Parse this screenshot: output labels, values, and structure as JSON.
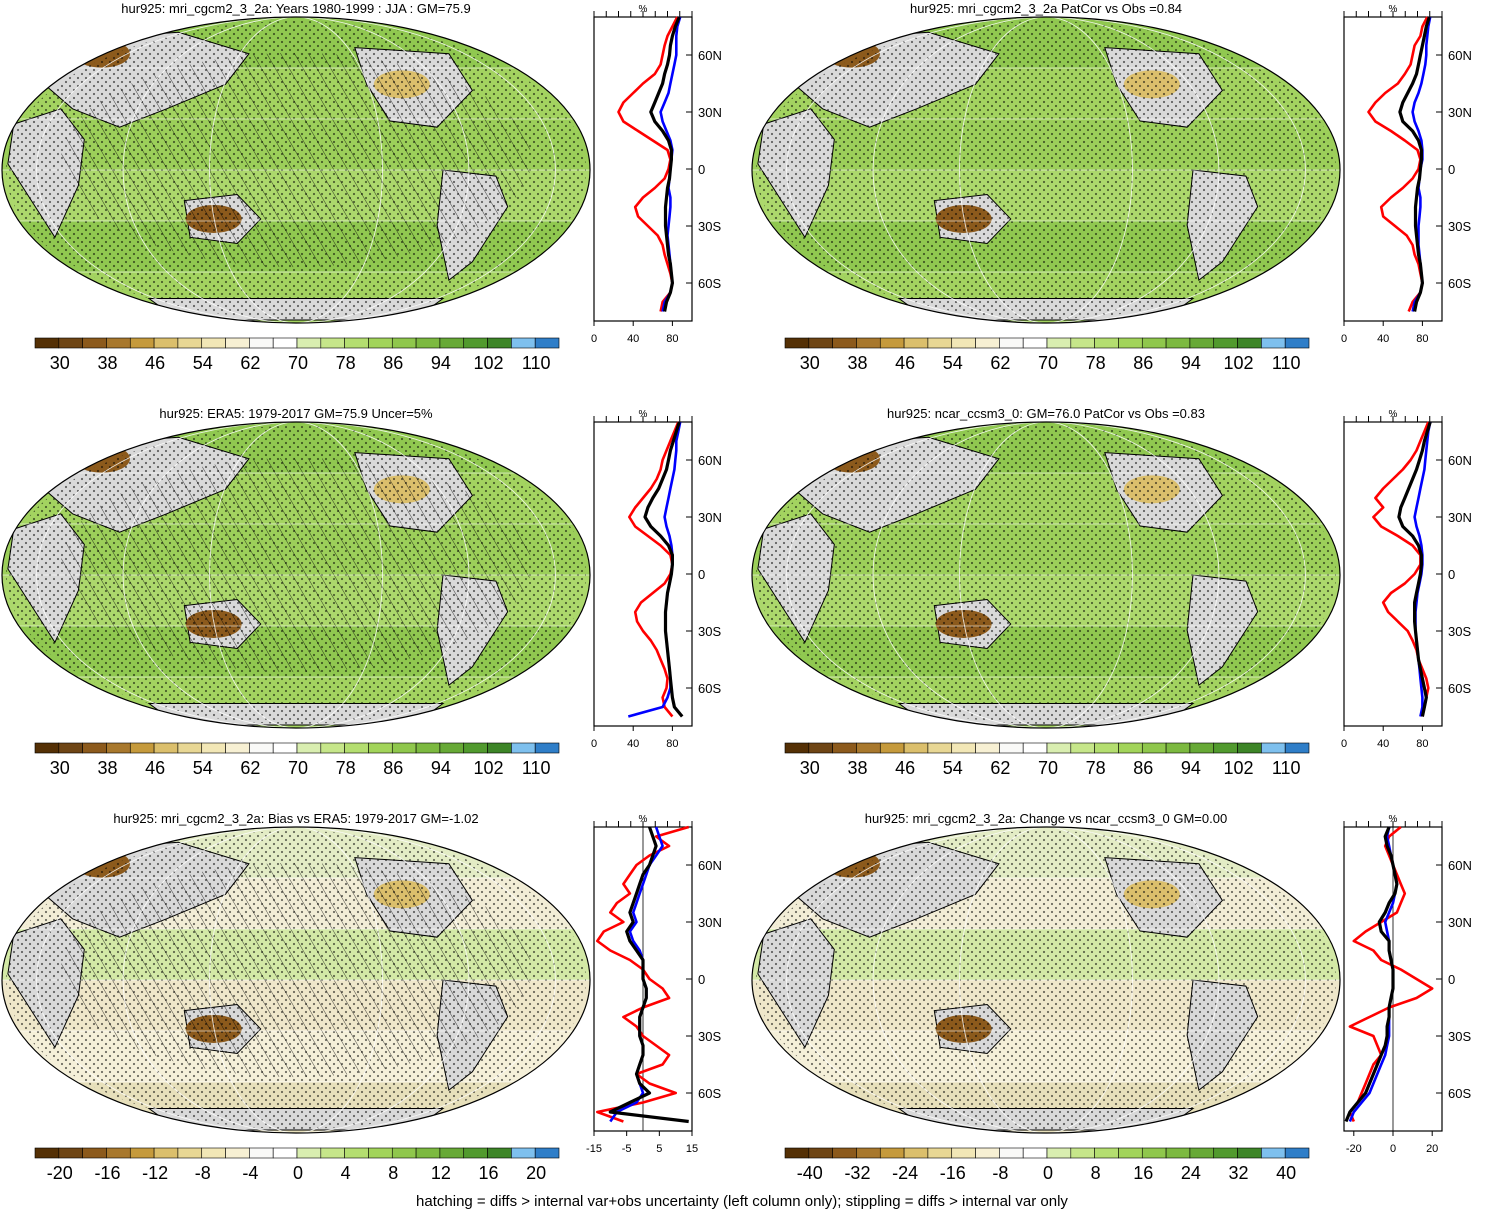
{
  "footer": "hatching = diffs > internal var+obs uncertainty (left column only); stippling = diffs > internal var only",
  "colors": {
    "red": "#ff0000",
    "blue": "#0000ff",
    "black": "#000000",
    "land_gray": "#d9d9d9",
    "abs_palette": [
      "#543005",
      "#6e4514",
      "#8c5a1c",
      "#a8782d",
      "#c59a3c",
      "#dbbf6c",
      "#e8d794",
      "#f2e7b6",
      "#f7f0d3",
      "#f9f9f7",
      "#ffffff",
      "#d9eeb0",
      "#c6e68a",
      "#b4de70",
      "#a2d45a",
      "#8fc74c",
      "#7cb940",
      "#67a936",
      "#519a2e",
      "#3d8527",
      "#7ec0ee",
      "#2f7ec8"
    ],
    "diff_palette": [
      "#543005",
      "#6e4514",
      "#8c5a1c",
      "#a8782d",
      "#c59a3c",
      "#dbbf6c",
      "#e8d794",
      "#f2e7b6",
      "#f7f0d3",
      "#f9f9f7",
      "#ffffff",
      "#d9eeb0",
      "#c6e68a",
      "#b4de70",
      "#a2d45a",
      "#8fc74c",
      "#7cb940",
      "#67a936",
      "#519a2e",
      "#3d8527",
      "#7ec0ee",
      "#2f7ec8"
    ]
  },
  "panels": [
    {
      "title": "hur925: mri_cgcm2_3_2a: Years 1980-1999 : JJA : GM=75.9",
      "colorbar_labels": [
        "30",
        "38",
        "46",
        "54",
        "62",
        "70",
        "78",
        "86",
        "94",
        "102",
        "110"
      ],
      "palette": "abs",
      "hatch": true
    },
    {
      "title": "hur925: mri_cgcm2_3_2a PatCor vs Obs =0.84",
      "colorbar_labels": [
        "30",
        "38",
        "46",
        "54",
        "62",
        "70",
        "78",
        "86",
        "94",
        "102",
        "110"
      ],
      "palette": "abs",
      "hatch": false
    },
    {
      "title": "hur925: ERA5: 1979-2017 GM=75.9 Uncer=5%",
      "colorbar_labels": [
        "30",
        "38",
        "46",
        "54",
        "62",
        "70",
        "78",
        "86",
        "94",
        "102",
        "110"
      ],
      "palette": "abs",
      "hatch": true
    },
    {
      "title": "hur925: ncar_ccsm3_0: GM=76.0 PatCor vs Obs =0.83",
      "colorbar_labels": [
        "30",
        "38",
        "46",
        "54",
        "62",
        "70",
        "78",
        "86",
        "94",
        "102",
        "110"
      ],
      "palette": "abs",
      "hatch": false
    },
    {
      "title": "hur925: mri_cgcm2_3_2a: Bias vs ERA5: 1979-2017 GM=-1.02",
      "colorbar_labels": [
        "-20",
        "-16",
        "-12",
        "-8",
        "-4",
        "0",
        "4",
        "8",
        "12",
        "16",
        "20"
      ],
      "palette": "diff",
      "hatch": true
    },
    {
      "title": "hur925: mri_cgcm2_3_2a: Change vs ncar_ccsm3_0 GM=0.00",
      "colorbar_labels": [
        "-40",
        "-32",
        "-24",
        "-16",
        "-8",
        "0",
        "8",
        "16",
        "24",
        "32",
        "40"
      ],
      "palette": "diff",
      "hatch": false
    }
  ],
  "chart_data": [
    {
      "type": "line",
      "panel": "row1-left-profile",
      "ylabel_top": "%",
      "lat_ticks": [
        "60N",
        "30N",
        "0",
        "30S",
        "60S"
      ],
      "x_ticks": [
        "0",
        "40",
        "80"
      ],
      "xlim": [
        0,
        100
      ],
      "ylim": [
        -80,
        80
      ],
      "lat": [
        80,
        75,
        70,
        65,
        60,
        55,
        50,
        45,
        40,
        35,
        30,
        25,
        20,
        15,
        10,
        5,
        0,
        -5,
        -10,
        -15,
        -20,
        -25,
        -30,
        -35,
        -40,
        -45,
        -50,
        -55,
        -60,
        -65,
        -70,
        -75
      ],
      "series": [
        {
          "color": "red",
          "values": [
            85,
            80,
            75,
            72,
            70,
            68,
            62,
            50,
            40,
            30,
            25,
            30,
            45,
            60,
            75,
            78,
            76,
            72,
            62,
            50,
            42,
            45,
            55,
            65,
            70,
            72,
            75,
            78,
            80,
            78,
            70,
            68
          ]
        },
        {
          "color": "blue",
          "values": [
            88,
            85,
            84,
            84,
            84,
            82,
            80,
            78,
            76,
            72,
            68,
            70,
            74,
            78,
            80,
            79,
            78,
            77,
            76,
            78,
            78,
            77,
            76,
            75,
            76,
            77,
            78,
            79,
            80,
            78,
            72,
            70
          ]
        },
        {
          "color": "black",
          "values": [
            87,
            83,
            80,
            78,
            77,
            75,
            72,
            70,
            66,
            62,
            58,
            62,
            70,
            76,
            79,
            79,
            78,
            77,
            75,
            74,
            73,
            73,
            73,
            74,
            75,
            76,
            78,
            79,
            80,
            78,
            74,
            72
          ]
        }
      ]
    },
    {
      "type": "line",
      "panel": "row1-right-profile",
      "ylabel_top": "%",
      "lat_ticks": [
        "60N",
        "30N",
        "0",
        "30S",
        "60S"
      ],
      "x_ticks": [
        "0",
        "40",
        "80"
      ],
      "xlim": [
        0,
        100
      ],
      "ylim": [
        -80,
        80
      ],
      "lat": [
        80,
        75,
        70,
        65,
        60,
        55,
        50,
        45,
        40,
        35,
        30,
        25,
        20,
        15,
        10,
        5,
        0,
        -5,
        -10,
        -15,
        -20,
        -25,
        -30,
        -35,
        -40,
        -45,
        -50,
        -55,
        -60,
        -65,
        -70,
        -75
      ],
      "series": [
        {
          "color": "red",
          "values": [
            85,
            80,
            78,
            72,
            70,
            68,
            62,
            55,
            42,
            32,
            25,
            32,
            48,
            62,
            75,
            78,
            76,
            70,
            60,
            48,
            38,
            40,
            52,
            64,
            70,
            72,
            76,
            78,
            80,
            78,
            70,
            66
          ]
        },
        {
          "color": "blue",
          "values": [
            88,
            86,
            85,
            84,
            84,
            83,
            81,
            79,
            76,
            72,
            70,
            72,
            76,
            79,
            80,
            80,
            78,
            77,
            76,
            78,
            78,
            77,
            76,
            76,
            76,
            77,
            78,
            79,
            80,
            78,
            72,
            70
          ]
        },
        {
          "color": "black",
          "values": [
            87,
            84,
            82,
            80,
            78,
            76,
            74,
            70,
            65,
            60,
            57,
            60,
            70,
            76,
            79,
            79,
            78,
            77,
            75,
            74,
            73,
            73,
            73,
            74,
            75,
            76,
            78,
            79,
            80,
            78,
            74,
            72
          ]
        }
      ]
    },
    {
      "type": "line",
      "panel": "row2-left-profile",
      "ylabel_top": "%",
      "lat_ticks": [
        "60N",
        "30N",
        "0",
        "30S",
        "60S"
      ],
      "x_ticks": [
        "0",
        "40",
        "80"
      ],
      "xlim": [
        0,
        100
      ],
      "ylim": [
        -80,
        80
      ],
      "lat": [
        80,
        75,
        70,
        65,
        60,
        55,
        50,
        45,
        40,
        35,
        30,
        25,
        20,
        15,
        10,
        5,
        0,
        -5,
        -10,
        -15,
        -20,
        -25,
        -30,
        -35,
        -40,
        -45,
        -50,
        -55,
        -60,
        -65,
        -70,
        -75
      ],
      "series": [
        {
          "color": "red",
          "values": [
            86,
            82,
            78,
            74,
            70,
            68,
            64,
            58,
            50,
            42,
            36,
            42,
            55,
            68,
            78,
            80,
            78,
            72,
            60,
            48,
            42,
            44,
            50,
            58,
            64,
            68,
            72,
            75,
            74,
            70,
            72,
            80
          ]
        },
        {
          "color": "blue",
          "values": [
            88,
            86,
            84,
            84,
            83,
            82,
            80,
            78,
            76,
            74,
            72,
            74,
            77,
            79,
            80,
            80,
            79,
            77,
            75,
            74,
            73,
            73,
            73,
            74,
            75,
            76,
            77,
            78,
            78,
            75,
            70,
            35
          ]
        },
        {
          "color": "black",
          "values": [
            87,
            84,
            81,
            78,
            76,
            74,
            70,
            66,
            60,
            55,
            52,
            58,
            68,
            76,
            80,
            80,
            79,
            77,
            75,
            74,
            73,
            73,
            73,
            74,
            75,
            76,
            77,
            78,
            79,
            80,
            82,
            90
          ]
        }
      ]
    },
    {
      "type": "line",
      "panel": "row2-right-profile",
      "ylabel_top": "%",
      "lat_ticks": [
        "60N",
        "30N",
        "0",
        "30S",
        "60S"
      ],
      "x_ticks": [
        "0",
        "40",
        "80"
      ],
      "xlim": [
        0,
        100
      ],
      "ylim": [
        -80,
        80
      ],
      "lat": [
        80,
        75,
        70,
        65,
        60,
        55,
        50,
        45,
        40,
        35,
        30,
        25,
        20,
        15,
        10,
        5,
        0,
        -5,
        -10,
        -15,
        -20,
        -25,
        -30,
        -35,
        -40,
        -45,
        -50,
        -55,
        -60,
        -65,
        -70,
        -75
      ],
      "series": [
        {
          "color": "red",
          "values": [
            86,
            82,
            78,
            74,
            68,
            60,
            50,
            40,
            32,
            40,
            30,
            38,
            55,
            70,
            78,
            78,
            72,
            62,
            48,
            40,
            45,
            55,
            65,
            70,
            74,
            76,
            80,
            84,
            86,
            84,
            82,
            80
          ]
        },
        {
          "color": "blue",
          "values": [
            88,
            86,
            85,
            84,
            83,
            82,
            80,
            78,
            76,
            74,
            72,
            74,
            77,
            79,
            80,
            80,
            79,
            77,
            75,
            74,
            73,
            73,
            73,
            74,
            75,
            76,
            77,
            78,
            79,
            80,
            80,
            78
          ]
        },
        {
          "color": "black",
          "values": [
            88,
            85,
            82,
            80,
            77,
            74,
            70,
            66,
            62,
            58,
            56,
            60,
            70,
            76,
            79,
            79,
            78,
            76,
            74,
            72,
            72,
            72,
            73,
            74,
            75,
            76,
            78,
            80,
            82,
            84,
            82,
            80
          ]
        }
      ]
    },
    {
      "type": "line",
      "panel": "row3-left-profile",
      "ylabel_top": "%",
      "lat_ticks": [
        "60N",
        "30N",
        "0",
        "30S",
        "60S"
      ],
      "x_ticks": [
        "-15",
        "-5",
        "5",
        "15"
      ],
      "xlim": [
        -15,
        15
      ],
      "ylim": [
        -80,
        80
      ],
      "lat": [
        80,
        75,
        70,
        65,
        60,
        55,
        50,
        45,
        40,
        35,
        30,
        25,
        20,
        15,
        10,
        5,
        0,
        -5,
        -10,
        -15,
        -20,
        -25,
        -30,
        -35,
        -40,
        -45,
        -50,
        -55,
        -60,
        -65,
        -70,
        -75
      ],
      "series": [
        {
          "color": "red",
          "values": [
            14,
            4,
            8,
            2,
            -2,
            -4,
            -6,
            -4,
            -8,
            -10,
            -6,
            -12,
            -14,
            -10,
            -4,
            0,
            2,
            6,
            8,
            0,
            -6,
            -2,
            0,
            4,
            8,
            6,
            -2,
            2,
            10,
            0,
            -14,
            -6
          ]
        },
        {
          "color": "blue",
          "values": [
            4,
            5,
            6,
            4,
            2,
            1,
            0,
            -1,
            -2,
            -3,
            -2,
            -4,
            -3,
            -1,
            0,
            0,
            0,
            1,
            1,
            0,
            -1,
            -1,
            -1,
            0,
            0,
            -1,
            -2,
            -1,
            0,
            -2,
            -8,
            -10
          ]
        },
        {
          "color": "black",
          "values": [
            2,
            3,
            4,
            3,
            2,
            0,
            -1,
            -2,
            -3,
            -4,
            -3,
            -5,
            -4,
            -2,
            0,
            0,
            0,
            1,
            1,
            0,
            -1,
            -1,
            -1,
            0,
            0,
            -1,
            -2,
            -1,
            2,
            -4,
            -10,
            14
          ]
        }
      ]
    },
    {
      "type": "line",
      "panel": "row3-right-profile",
      "ylabel_top": "%",
      "lat_ticks": [
        "60N",
        "30N",
        "0",
        "30S",
        "60S"
      ],
      "x_ticks": [
        "-20",
        "0",
        "20"
      ],
      "xlim": [
        -25,
        25
      ],
      "ylim": [
        -80,
        80
      ],
      "lat": [
        80,
        75,
        70,
        65,
        60,
        55,
        50,
        45,
        40,
        35,
        30,
        25,
        20,
        15,
        10,
        5,
        0,
        -5,
        -10,
        -15,
        -20,
        -25,
        -30,
        -35,
        -40,
        -45,
        -50,
        -55,
        -60,
        -65,
        -70,
        -75
      ],
      "series": [
        {
          "color": "red",
          "values": [
            4,
            -2,
            -4,
            -2,
            0,
            2,
            4,
            6,
            4,
            2,
            -6,
            -14,
            -20,
            -10,
            -6,
            4,
            12,
            20,
            12,
            -2,
            -12,
            -22,
            -10,
            -8,
            -6,
            -10,
            -12,
            -14,
            -16,
            -18,
            -22,
            -20
          ]
        },
        {
          "color": "blue",
          "values": [
            -2,
            -3,
            -2,
            -1,
            0,
            1,
            2,
            1,
            0,
            -2,
            -4,
            -3,
            -2,
            -2,
            -1,
            0,
            0,
            0,
            -1,
            -2,
            -2,
            -2,
            -2,
            -3,
            -4,
            -6,
            -8,
            -10,
            -12,
            -16,
            -20,
            -22
          ]
        },
        {
          "color": "black",
          "values": [
            -2,
            -4,
            -3,
            -1,
            0,
            1,
            2,
            1,
            -2,
            -4,
            -7,
            -6,
            -2,
            -2,
            -1,
            0,
            0,
            0,
            -1,
            -2,
            -2,
            -3,
            -3,
            -4,
            -6,
            -8,
            -10,
            -12,
            -14,
            -18,
            -22,
            -24
          ]
        }
      ]
    }
  ]
}
